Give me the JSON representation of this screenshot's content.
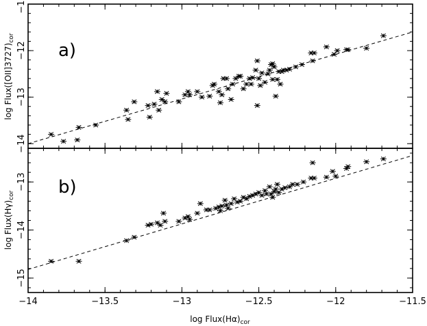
{
  "chart_data": [
    {
      "type": "scatter",
      "panel_label": "a)",
      "xlabel": "",
      "ylabel": "log Flux([OII]3727)",
      "ylabel_sub": "cor",
      "xlim": [
        -14,
        -11.5
      ],
      "ylim": [
        -14.1,
        -11
      ],
      "xticks": [
        -14,
        -13.5,
        -13,
        -12.5,
        -12,
        -11.5
      ],
      "yticks": [
        -14,
        -13,
        -12,
        -11
      ],
      "grid": false,
      "fit_line": {
        "style": "dashed",
        "x": [
          -14,
          -11.5
        ],
        "y": [
          -14.0,
          -11.6
        ]
      },
      "points": [
        {
          "x": -13.85,
          "y": -13.8
        },
        {
          "x": -13.77,
          "y": -13.95
        },
        {
          "x": -13.68,
          "y": -13.92
        },
        {
          "x": -13.67,
          "y": -13.65
        },
        {
          "x": -13.56,
          "y": -13.6
        },
        {
          "x": -13.36,
          "y": -13.28
        },
        {
          "x": -13.35,
          "y": -13.48
        },
        {
          "x": -13.31,
          "y": -13.1
        },
        {
          "x": -13.22,
          "y": -13.18
        },
        {
          "x": -13.21,
          "y": -13.43
        },
        {
          "x": -13.18,
          "y": -13.15
        },
        {
          "x": -13.16,
          "y": -12.88
        },
        {
          "x": -13.15,
          "y": -13.28
        },
        {
          "x": -13.13,
          "y": -13.05
        },
        {
          "x": -13.11,
          "y": -13.1
        },
        {
          "x": -13.1,
          "y": -12.92
        },
        {
          "x": -13.02,
          "y": -13.1
        },
        {
          "x": -12.98,
          "y": -12.95
        },
        {
          "x": -12.96,
          "y": -12.88
        },
        {
          "x": -12.95,
          "y": -12.95
        },
        {
          "x": -12.9,
          "y": -12.88
        },
        {
          "x": -12.87,
          "y": -13.0
        },
        {
          "x": -12.82,
          "y": -12.98
        },
        {
          "x": -12.8,
          "y": -12.75
        },
        {
          "x": -12.79,
          "y": -12.72
        },
        {
          "x": -12.76,
          "y": -12.88
        },
        {
          "x": -12.75,
          "y": -13.12
        },
        {
          "x": -12.74,
          "y": -12.95
        },
        {
          "x": -12.73,
          "y": -12.6
        },
        {
          "x": -12.71,
          "y": -12.6
        },
        {
          "x": -12.7,
          "y": -12.82
        },
        {
          "x": -12.68,
          "y": -13.05
        },
        {
          "x": -12.67,
          "y": -12.72
        },
        {
          "x": -12.65,
          "y": -12.6
        },
        {
          "x": -12.63,
          "y": -12.55
        },
        {
          "x": -12.62,
          "y": -12.55
        },
        {
          "x": -12.6,
          "y": -12.82
        },
        {
          "x": -12.58,
          "y": -12.72
        },
        {
          "x": -12.56,
          "y": -12.6
        },
        {
          "x": -12.55,
          "y": -12.72
        },
        {
          "x": -12.54,
          "y": -12.58
        },
        {
          "x": -12.52,
          "y": -12.42
        },
        {
          "x": -12.51,
          "y": -12.22
        },
        {
          "x": -12.51,
          "y": -13.18
        },
        {
          "x": -12.5,
          "y": -12.6
        },
        {
          "x": -12.49,
          "y": -12.75
        },
        {
          "x": -12.48,
          "y": -12.48
        },
        {
          "x": -12.46,
          "y": -12.68
        },
        {
          "x": -12.44,
          "y": -12.5
        },
        {
          "x": -12.43,
          "y": -12.42
        },
        {
          "x": -12.42,
          "y": -12.3
        },
        {
          "x": -12.41,
          "y": -12.62
        },
        {
          "x": -12.41,
          "y": -12.28
        },
        {
          "x": -12.4,
          "y": -12.35
        },
        {
          "x": -12.39,
          "y": -12.98
        },
        {
          "x": -12.38,
          "y": -12.62
        },
        {
          "x": -12.37,
          "y": -12.45
        },
        {
          "x": -12.36,
          "y": -12.72
        },
        {
          "x": -12.35,
          "y": -12.45
        },
        {
          "x": -12.34,
          "y": -12.42
        },
        {
          "x": -12.32,
          "y": -12.42
        },
        {
          "x": -12.3,
          "y": -12.4
        },
        {
          "x": -12.26,
          "y": -12.35
        },
        {
          "x": -12.22,
          "y": -12.3
        },
        {
          "x": -12.16,
          "y": -12.05
        },
        {
          "x": -12.15,
          "y": -12.22
        },
        {
          "x": -12.14,
          "y": -12.05
        },
        {
          "x": -12.06,
          "y": -11.92
        },
        {
          "x": -12.01,
          "y": -12.08
        },
        {
          "x": -11.99,
          "y": -12.0
        },
        {
          "x": -11.93,
          "y": -11.98
        },
        {
          "x": -11.92,
          "y": -11.98
        },
        {
          "x": -11.8,
          "y": -11.95
        },
        {
          "x": -11.69,
          "y": -11.68
        }
      ]
    },
    {
      "type": "scatter",
      "panel_label": "b)",
      "xlabel": "log Flux(Hα)",
      "xlabel_sub": "cor",
      "ylabel": "log Flux(Hγ)",
      "ylabel_sub": "cor",
      "xlim": [
        -14,
        -11.5
      ],
      "ylim": [
        -15.3,
        -12.3
      ],
      "xticks": [
        -14,
        -13.5,
        -13,
        -12.5,
        -12,
        -11.5
      ],
      "xtick_labels": [
        "−14",
        "−13.5",
        "−13",
        "−12.5",
        "−12",
        "−11.5"
      ],
      "yticks": [
        -15,
        -14,
        -13
      ],
      "grid": false,
      "fit_line": {
        "style": "dashed",
        "x": [
          -14,
          -11.5
        ],
        "y": [
          -14.82,
          -12.45
        ]
      },
      "points": [
        {
          "x": -13.85,
          "y": -14.65
        },
        {
          "x": -13.67,
          "y": -14.65
        },
        {
          "x": -13.36,
          "y": -14.22
        },
        {
          "x": -13.31,
          "y": -14.15
        },
        {
          "x": -13.22,
          "y": -13.9
        },
        {
          "x": -13.2,
          "y": -13.88
        },
        {
          "x": -13.16,
          "y": -13.85
        },
        {
          "x": -13.14,
          "y": -13.9
        },
        {
          "x": -13.12,
          "y": -13.65
        },
        {
          "x": -13.11,
          "y": -13.82
        },
        {
          "x": -13.02,
          "y": -13.82
        },
        {
          "x": -12.98,
          "y": -13.75
        },
        {
          "x": -12.96,
          "y": -13.72
        },
        {
          "x": -12.95,
          "y": -13.78
        },
        {
          "x": -12.9,
          "y": -13.65
        },
        {
          "x": -12.88,
          "y": -13.45
        },
        {
          "x": -12.84,
          "y": -13.58
        },
        {
          "x": -12.82,
          "y": -13.58
        },
        {
          "x": -12.78,
          "y": -13.55
        },
        {
          "x": -12.76,
          "y": -13.52
        },
        {
          "x": -12.75,
          "y": -13.6
        },
        {
          "x": -12.74,
          "y": -13.5
        },
        {
          "x": -12.72,
          "y": -13.38
        },
        {
          "x": -12.71,
          "y": -13.48
        },
        {
          "x": -12.7,
          "y": -13.55
        },
        {
          "x": -12.68,
          "y": -13.45
        },
        {
          "x": -12.66,
          "y": -13.35
        },
        {
          "x": -12.64,
          "y": -13.42
        },
        {
          "x": -12.62,
          "y": -13.4
        },
        {
          "x": -12.6,
          "y": -13.32
        },
        {
          "x": -12.58,
          "y": -13.35
        },
        {
          "x": -12.56,
          "y": -13.3
        },
        {
          "x": -12.54,
          "y": -13.28
        },
        {
          "x": -12.52,
          "y": -13.25
        },
        {
          "x": -12.5,
          "y": -13.22
        },
        {
          "x": -12.48,
          "y": -13.28
        },
        {
          "x": -12.46,
          "y": -13.18
        },
        {
          "x": -12.45,
          "y": -13.25
        },
        {
          "x": -12.43,
          "y": -13.1
        },
        {
          "x": -12.42,
          "y": -13.25
        },
        {
          "x": -12.41,
          "y": -13.32
        },
        {
          "x": -12.4,
          "y": -13.2
        },
        {
          "x": -12.39,
          "y": -13.15
        },
        {
          "x": -12.38,
          "y": -13.05
        },
        {
          "x": -12.37,
          "y": -13.22
        },
        {
          "x": -12.35,
          "y": -13.15
        },
        {
          "x": -12.33,
          "y": -13.12
        },
        {
          "x": -12.3,
          "y": -13.1
        },
        {
          "x": -12.28,
          "y": -13.05
        },
        {
          "x": -12.25,
          "y": -13.05
        },
        {
          "x": -12.21,
          "y": -13.0
        },
        {
          "x": -12.16,
          "y": -12.92
        },
        {
          "x": -12.15,
          "y": -12.6
        },
        {
          "x": -12.14,
          "y": -12.92
        },
        {
          "x": -12.06,
          "y": -12.9
        },
        {
          "x": -12.02,
          "y": -12.78
        },
        {
          "x": -12.0,
          "y": -12.88
        },
        {
          "x": -11.93,
          "y": -12.72
        },
        {
          "x": -11.92,
          "y": -12.68
        },
        {
          "x": -11.8,
          "y": -12.58
        },
        {
          "x": -11.69,
          "y": -12.52
        }
      ]
    }
  ]
}
